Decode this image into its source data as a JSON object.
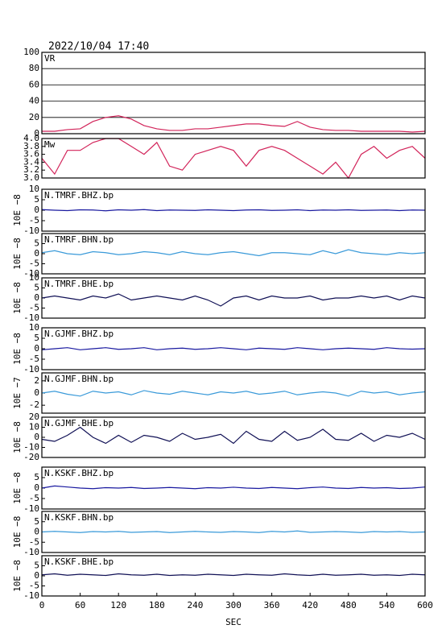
{
  "chart_data": [
    {
      "type": "line",
      "title": "2022/10/04  17:40",
      "x": [
        0,
        20,
        40,
        60,
        80,
        100,
        120,
        140,
        160,
        180,
        200,
        220,
        240,
        260,
        280,
        300,
        320,
        340,
        360,
        380,
        400,
        420,
        440,
        460,
        480,
        500,
        520,
        540,
        560,
        580,
        600
      ],
      "xlim": [
        0,
        600
      ],
      "ylim": [
        0,
        100
      ],
      "yticks": [
        0,
        20,
        40,
        60,
        80,
        100
      ],
      "grid": true,
      "series": [
        {
          "name": "VR",
          "color": "#d2245a",
          "values": [
            3,
            3,
            5,
            6,
            15,
            20,
            22,
            18,
            10,
            6,
            4,
            4,
            6,
            6,
            8,
            10,
            12,
            12,
            10,
            9,
            15,
            8,
            5,
            4,
            4,
            3,
            3,
            3,
            3,
            2,
            3
          ]
        }
      ]
    },
    {
      "type": "line",
      "x": [
        0,
        20,
        40,
        60,
        80,
        100,
        120,
        140,
        160,
        180,
        200,
        220,
        240,
        260,
        280,
        300,
        320,
        340,
        360,
        380,
        400,
        420,
        440,
        460,
        480,
        500,
        520,
        540,
        560,
        580,
        600
      ],
      "xlim": [
        0,
        600
      ],
      "ylim": [
        3,
        4
      ],
      "yticks": [
        {
          "value": 3,
          "label": "3.0"
        },
        3.2,
        3.4,
        3.6,
        3.8,
        {
          "value": 4,
          "label": "4.0"
        }
      ],
      "grid": false,
      "series": [
        {
          "name": "Mw",
          "color": "#d2245a",
          "values": [
            3.5,
            3.1,
            3.7,
            3.7,
            3.9,
            4.0,
            4.0,
            3.8,
            3.6,
            3.9,
            3.3,
            3.2,
            3.6,
            3.7,
            3.8,
            3.7,
            3.3,
            3.7,
            3.8,
            3.7,
            3.5,
            3.3,
            3.1,
            3.4,
            3.0,
            3.6,
            3.8,
            3.5,
            3.7,
            3.8,
            3.5
          ]
        }
      ]
    },
    {
      "type": "line",
      "ylabel": "10E −8",
      "x": [
        0,
        20,
        40,
        60,
        80,
        100,
        120,
        140,
        160,
        180,
        200,
        220,
        240,
        260,
        280,
        300,
        320,
        340,
        360,
        380,
        400,
        420,
        440,
        460,
        480,
        500,
        520,
        540,
        560,
        580,
        600
      ],
      "xlim": [
        0,
        600
      ],
      "ylim": [
        -10,
        10
      ],
      "yticks": [
        -10,
        -5,
        0,
        5,
        10
      ],
      "grid": false,
      "series": [
        {
          "name": "N.TMRF.BHZ.bp",
          "color": "#1a1aa0",
          "values": [
            0.3,
            0,
            -0.2,
            0.2,
            0.1,
            -0.3,
            0.2,
            0,
            0.3,
            -0.2,
            0.1,
            0,
            -0.1,
            0.2,
            0,
            -0.2,
            0.1,
            0.2,
            -0.1,
            0,
            0.2,
            -0.2,
            0.1,
            0,
            0.2,
            -0.1,
            0,
            0.1,
            -0.2,
            0.1,
            0
          ]
        }
      ]
    },
    {
      "type": "line",
      "ylabel": "10E −8",
      "x": [
        0,
        20,
        40,
        60,
        80,
        100,
        120,
        140,
        160,
        180,
        200,
        220,
        240,
        260,
        280,
        300,
        320,
        340,
        360,
        380,
        400,
        420,
        440,
        460,
        480,
        500,
        520,
        540,
        560,
        580,
        600
      ],
      "xlim": [
        0,
        600
      ],
      "ylim": [
        -10,
        10
      ],
      "yticks": [
        -10,
        -5,
        0,
        5
      ],
      "grid": false,
      "series": [
        {
          "name": "N.TMRF.BHN.bp",
          "color": "#3a9ad9",
          "values": [
            0.5,
            1.5,
            0,
            -0.5,
            1,
            0.5,
            -0.5,
            0,
            1,
            0.5,
            -0.5,
            1,
            0,
            -0.5,
            0.5,
            1,
            0,
            -1,
            0.5,
            0.5,
            0,
            -0.5,
            1.5,
            0,
            2,
            0.5,
            0,
            -0.5,
            0.5,
            0,
            0.5
          ]
        }
      ]
    },
    {
      "type": "line",
      "ylabel": "10E −8",
      "x": [
        0,
        20,
        40,
        60,
        80,
        100,
        120,
        140,
        160,
        180,
        200,
        220,
        240,
        260,
        280,
        300,
        320,
        340,
        360,
        380,
        400,
        420,
        440,
        460,
        480,
        500,
        520,
        540,
        560,
        580,
        600
      ],
      "xlim": [
        0,
        600
      ],
      "ylim": [
        -10,
        10
      ],
      "yticks": [
        -10,
        -5,
        0,
        5,
        10
      ],
      "grid": false,
      "series": [
        {
          "name": "N.TMRF.BHE.bp",
          "color": "#101055",
          "values": [
            0,
            1,
            0,
            -1,
            1,
            0,
            2,
            -1,
            0,
            1,
            0,
            -1,
            1,
            -1,
            -4,
            0,
            1,
            -1,
            1,
            0,
            0,
            1,
            -1,
            0,
            0,
            1,
            0,
            1,
            -1,
            1,
            0
          ]
        }
      ]
    },
    {
      "type": "line",
      "ylabel": "10E −8",
      "x": [
        0,
        20,
        40,
        60,
        80,
        100,
        120,
        140,
        160,
        180,
        200,
        220,
        240,
        260,
        280,
        300,
        320,
        340,
        360,
        380,
        400,
        420,
        440,
        460,
        480,
        500,
        520,
        540,
        560,
        580,
        600
      ],
      "xlim": [
        0,
        600
      ],
      "ylim": [
        -10,
        10
      ],
      "yticks": [
        -10,
        -5,
        0,
        5,
        10
      ],
      "grid": false,
      "series": [
        {
          "name": "N.GJMF.BHZ.bp",
          "color": "#1a1aa0",
          "values": [
            -0.5,
            0,
            0.5,
            -0.5,
            0,
            0.5,
            -0.3,
            0,
            0.5,
            -0.5,
            0,
            0.3,
            -0.3,
            0,
            0.5,
            0,
            -0.5,
            0.3,
            0,
            -0.3,
            0.5,
            0,
            -0.5,
            0,
            0.3,
            0,
            -0.3,
            0.5,
            0,
            -0.2,
            0
          ]
        }
      ]
    },
    {
      "type": "line",
      "ylabel": "10E −7",
      "x": [
        0,
        20,
        40,
        60,
        80,
        100,
        120,
        140,
        160,
        180,
        200,
        220,
        240,
        260,
        280,
        300,
        320,
        340,
        360,
        380,
        400,
        420,
        440,
        460,
        480,
        500,
        520,
        540,
        560,
        580,
        600
      ],
      "xlim": [
        0,
        600
      ],
      "ylim": [
        -3.3,
        3.3
      ],
      "yticks": [
        -2,
        0,
        2
      ],
      "grid": false,
      "series": [
        {
          "name": "N.GJMF.BHN.bp",
          "color": "#3a9ad9",
          "values": [
            0,
            0.3,
            -0.2,
            -0.5,
            0.3,
            0,
            0.2,
            -0.3,
            0.4,
            0,
            -0.2,
            0.3,
            0,
            -0.3,
            0.2,
            0,
            0.3,
            -0.2,
            0,
            0.3,
            -0.3,
            0,
            0.2,
            0,
            -0.5,
            0.3,
            0,
            0.2,
            -0.3,
            0,
            0.2
          ]
        }
      ]
    },
    {
      "type": "line",
      "ylabel": "10E −8",
      "x": [
        0,
        20,
        40,
        60,
        80,
        100,
        120,
        140,
        160,
        180,
        200,
        220,
        240,
        260,
        280,
        300,
        320,
        340,
        360,
        380,
        400,
        420,
        440,
        460,
        480,
        500,
        520,
        540,
        560,
        580,
        600
      ],
      "xlim": [
        0,
        600
      ],
      "ylim": [
        -20,
        20
      ],
      "yticks": [
        -20,
        -10,
        0,
        10,
        20
      ],
      "grid": false,
      "series": [
        {
          "name": "N.GJMF.BHE.bp",
          "color": "#101055",
          "values": [
            -2,
            -4,
            2,
            10,
            0,
            -6,
            2,
            -5,
            2,
            0,
            -4,
            4,
            -2,
            0,
            3,
            -6,
            6,
            -2,
            -4,
            6,
            -3,
            0,
            8,
            -2,
            -3,
            4,
            -4,
            2,
            0,
            4,
            -2
          ]
        }
      ]
    },
    {
      "type": "line",
      "ylabel": "10E −8",
      "x": [
        0,
        20,
        40,
        60,
        80,
        100,
        120,
        140,
        160,
        180,
        200,
        220,
        240,
        260,
        280,
        300,
        320,
        340,
        360,
        380,
        400,
        420,
        440,
        460,
        480,
        500,
        520,
        540,
        560,
        580,
        600
      ],
      "xlim": [
        0,
        600
      ],
      "ylim": [
        -10,
        10
      ],
      "yticks": [
        -10,
        -5,
        0,
        5
      ],
      "grid": false,
      "series": [
        {
          "name": "N.KSKF.BHZ.bp",
          "color": "#1a1aa0",
          "values": [
            0,
            1,
            0.5,
            0,
            -0.3,
            0.2,
            0,
            0.3,
            -0.2,
            0,
            0.3,
            0,
            -0.3,
            0.2,
            0,
            0.4,
            0,
            -0.2,
            0.3,
            0,
            -0.3,
            0.2,
            0.5,
            0,
            -0.2,
            0.3,
            0,
            0.2,
            -0.2,
            0,
            0.5
          ]
        }
      ]
    },
    {
      "type": "line",
      "ylabel": "10E −8",
      "x": [
        0,
        20,
        40,
        60,
        80,
        100,
        120,
        140,
        160,
        180,
        200,
        220,
        240,
        260,
        280,
        300,
        320,
        340,
        360,
        380,
        400,
        420,
        440,
        460,
        480,
        500,
        520,
        540,
        560,
        580,
        600
      ],
      "xlim": [
        0,
        600
      ],
      "ylim": [
        -10,
        10
      ],
      "yticks": [
        -10,
        -5,
        0,
        5
      ],
      "grid": false,
      "series": [
        {
          "name": "N.KSKF.BHN.bp",
          "color": "#3a9ad9",
          "values": [
            0,
            0.3,
            0,
            -0.3,
            0.2,
            0,
            0.3,
            -0.2,
            0,
            0.2,
            -0.3,
            0,
            0.3,
            0,
            -0.2,
            0.2,
            0,
            -0.3,
            0.3,
            0,
            0.5,
            -0.2,
            0,
            0.2,
            0,
            -0.3,
            0.2,
            0,
            0.2,
            -0.2,
            0
          ]
        }
      ]
    },
    {
      "type": "line",
      "ylabel": "10E −8",
      "xlabel": "SEC",
      "x": [
        0,
        20,
        40,
        60,
        80,
        100,
        120,
        140,
        160,
        180,
        200,
        220,
        240,
        260,
        280,
        300,
        320,
        340,
        360,
        380,
        400,
        420,
        440,
        460,
        480,
        500,
        520,
        540,
        560,
        580,
        600
      ],
      "xlim": [
        0,
        600
      ],
      "xticks": [
        0,
        60,
        120,
        180,
        240,
        300,
        360,
        420,
        480,
        540,
        600
      ],
      "ylim": [
        -10,
        10
      ],
      "yticks": [
        -10,
        -5,
        0,
        5
      ],
      "grid": false,
      "series": [
        {
          "name": "N.KSKF.BHE.bp",
          "color": "#101055",
          "values": [
            0.5,
            1,
            0.3,
            0.8,
            0.5,
            0.2,
            1,
            0.5,
            0.3,
            0.8,
            0.2,
            0.5,
            0.3,
            0.8,
            0.5,
            0.2,
            0.8,
            0.5,
            0.3,
            1,
            0.5,
            0.2,
            0.8,
            0.3,
            0.5,
            0.8,
            0.3,
            0.5,
            0.2,
            0.8,
            0.5
          ]
        }
      ]
    }
  ]
}
